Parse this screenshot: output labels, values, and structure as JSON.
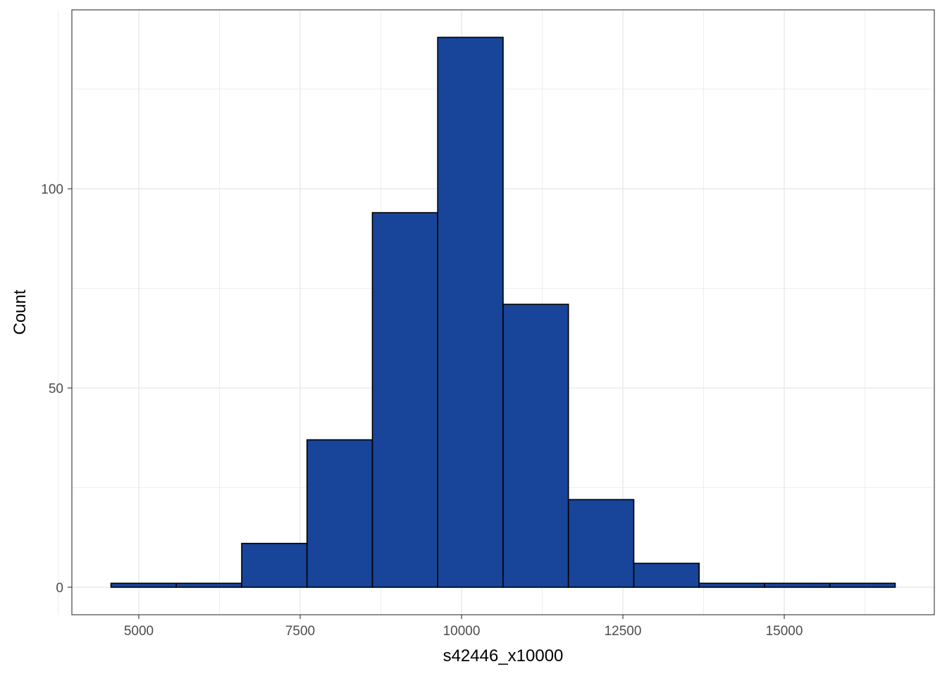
{
  "chart_data": {
    "type": "bar",
    "subtype": "histogram",
    "title": "",
    "xlabel": "s42446_x10000",
    "ylabel": "Count",
    "bin_width": 1012.5,
    "bins": [
      {
        "x0": 4569,
        "x1": 5581,
        "count": 1
      },
      {
        "x0": 5581,
        "x1": 6594,
        "count": 1
      },
      {
        "x0": 6594,
        "x1": 7606,
        "count": 11
      },
      {
        "x0": 7606,
        "x1": 8619,
        "count": 37
      },
      {
        "x0": 8619,
        "x1": 9631,
        "count": 94
      },
      {
        "x0": 9631,
        "x1": 10644,
        "count": 138
      },
      {
        "x0": 10644,
        "x1": 11656,
        "count": 71
      },
      {
        "x0": 11656,
        "x1": 12669,
        "count": 22
      },
      {
        "x0": 12669,
        "x1": 13681,
        "count": 6
      },
      {
        "x0": 13681,
        "x1": 14694,
        "count": 1
      },
      {
        "x0": 14694,
        "x1": 15706,
        "count": 1
      },
      {
        "x0": 15706,
        "x1": 16719,
        "count": 1
      }
    ],
    "xlim": [
      3963,
      17325
    ],
    "ylim": [
      -6.9,
      144.9
    ],
    "x_ticks": [
      5000,
      7500,
      10000,
      12500,
      15000
    ],
    "x_tick_labels": [
      "5000",
      "7500",
      "10000",
      "12500",
      "15000"
    ],
    "x_minor_ticks": [
      3750,
      6250,
      8750,
      11250,
      13750,
      16250
    ],
    "y_ticks": [
      0,
      50,
      100
    ],
    "y_tick_labels": [
      "0",
      "50",
      "100"
    ],
    "y_minor_ticks": [
      25,
      75,
      125
    ],
    "grid": true,
    "legend": "none",
    "colors": {
      "bar_fill": "#184499",
      "bar_outline": "#000000",
      "grid": "#ebebeb",
      "panel_border": "#333333",
      "tick_text": "#4d4d4d"
    }
  }
}
